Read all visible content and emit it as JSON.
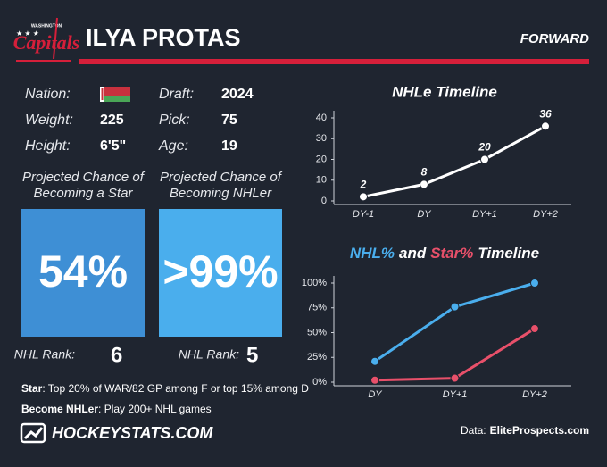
{
  "logo": {
    "top": "WASHINGTON",
    "main": "Capitals"
  },
  "player": {
    "name": "ILYA PROTAS",
    "position": "FORWARD"
  },
  "bio": [
    {
      "label": "Nation:"
    },
    {
      "label": "Draft:",
      "value": 2024
    },
    {
      "label": "Weight:",
      "value": 225
    },
    {
      "label": "Pick:",
      "value": 75
    },
    {
      "label": "Height:",
      "value": "6'5\""
    },
    {
      "label": "Age:",
      "value": 19
    }
  ],
  "projections": [
    {
      "title_lines": [
        "Projected Chance of",
        "Becoming a Star"
      ],
      "value": "54%",
      "rank_label": "NHL Rank:",
      "rank": 6
    },
    {
      "title_lines": [
        "Projected Chance of",
        "Becoming NHLer"
      ],
      "value": ">99%",
      "rank_label": "NHL Rank:",
      "rank": 5
    }
  ],
  "notes": [
    {
      "term": "Star",
      "text": ": Top 20% of WAR/82 GP among F or top 15% among D"
    },
    {
      "term": "Become NHLer",
      "text": ": Play 200+ NHL games"
    }
  ],
  "footer": {
    "site": "HOCKEYSTATS.COM",
    "source_label": "Data:",
    "source": "EliteProspects.com"
  },
  "chart_data": [
    {
      "type": "line",
      "title": "NHLe Timeline",
      "categories": [
        "DY-1",
        "DY",
        "DY+1",
        "DY+2"
      ],
      "series": [
        {
          "color": "#ffffff",
          "values": [
            2,
            8,
            20,
            36
          ]
        }
      ],
      "data_labels": true,
      "ylim": [
        0,
        40
      ],
      "yticks": [
        0,
        10,
        20,
        30,
        40
      ]
    },
    {
      "type": "line",
      "title_connector": "and",
      "title_suffix": "Timeline",
      "categories": [
        "DY",
        "DY+1",
        "DY+2"
      ],
      "series": [
        {
          "name": "NHL%",
          "color": "#4aaeed",
          "values": [
            21,
            76,
            100
          ]
        },
        {
          "name": "Star%",
          "color": "#e8506a",
          "values": [
            2,
            4,
            54
          ]
        }
      ],
      "data_labels": false,
      "ylim": [
        0,
        100
      ],
      "yticks": [
        {
          "value": 0,
          "label": "0%"
        },
        {
          "value": 25,
          "label": "25%"
        },
        {
          "value": 50,
          "label": "50%"
        },
        {
          "value": 75,
          "label": "75%"
        },
        {
          "value": 100,
          "label": "100%"
        }
      ]
    }
  ]
}
